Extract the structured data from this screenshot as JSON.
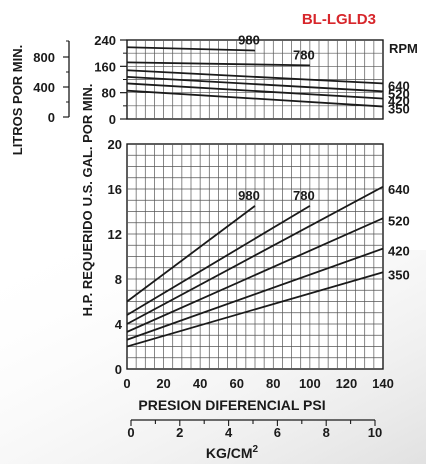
{
  "chart_data": [
    {
      "type": "line",
      "title": "BL-LGLD3",
      "ylabel": "LITROS POR MIN.",
      "ylabel2": "U.S. GAL. POR MIN.",
      "xlabel": "PRESION DIFERENCIAL PSI",
      "rpm_header": "RPM",
      "ylim": [
        0,
        240
      ],
      "grid": true,
      "y_ticks": [
        "240",
        "160",
        "80",
        "0"
      ],
      "y_minor_ticks": [
        "200",
        "120",
        "40"
      ],
      "litros_ticks": [
        "800",
        "400",
        "0"
      ],
      "series": [
        {
          "name": "980",
          "label_pos": "above",
          "x": [
            0,
            70
          ],
          "y": [
            218,
            208
          ]
        },
        {
          "name": "780",
          "label_pos": "above",
          "x": [
            0,
            100
          ],
          "y": [
            172,
            163
          ]
        },
        {
          "name": "640",
          "label_pos": "right",
          "x": [
            0,
            140
          ],
          "y": [
            148,
            108
          ]
        },
        {
          "name": "520",
          "label_pos": "right",
          "x": [
            0,
            140
          ],
          "y": [
            128,
            84
          ]
        },
        {
          "name": "420",
          "label_pos": "right",
          "x": [
            0,
            140
          ],
          "y": [
            108,
            62
          ]
        },
        {
          "name": "350",
          "label_pos": "right",
          "x": [
            0,
            140
          ],
          "y": [
            86,
            38
          ]
        }
      ]
    },
    {
      "type": "line",
      "ylabel": "H.P. REQUERIDO",
      "xlabel": "PRESION DIFERENCIAL PSI",
      "x2label": "KG/CM",
      "x2label_sup": "2",
      "xlim": [
        0,
        140
      ],
      "ylim": [
        0,
        20
      ],
      "grid": true,
      "x_ticks": [
        "0",
        "20",
        "40",
        "60",
        "80",
        "100",
        "120",
        "140"
      ],
      "y_ticks": [
        "20",
        "16",
        "12",
        "8",
        "4",
        "0"
      ],
      "kg_ticks": [
        "0",
        "2",
        "4",
        "6",
        "8",
        "10"
      ],
      "series": [
        {
          "name": "980",
          "label_pos": "above",
          "x": [
            0,
            70
          ],
          "y": [
            6.0,
            14.5
          ]
        },
        {
          "name": "780",
          "label_pos": "above",
          "x": [
            0,
            100
          ],
          "y": [
            4.8,
            14.5
          ]
        },
        {
          "name": "640",
          "label_pos": "right",
          "x": [
            0,
            140
          ],
          "y": [
            4.0,
            16.2
          ]
        },
        {
          "name": "520",
          "label_pos": "right",
          "x": [
            0,
            140
          ],
          "y": [
            3.3,
            13.4
          ]
        },
        {
          "name": "420",
          "label_pos": "right",
          "x": [
            0,
            140
          ],
          "y": [
            2.6,
            10.7
          ]
        },
        {
          "name": "350",
          "label_pos": "right",
          "x": [
            0,
            140
          ],
          "y": [
            2.0,
            8.6
          ]
        }
      ]
    }
  ],
  "colors": {
    "title": "#d7262b",
    "text": "#1a1a1a",
    "line": "#1a1a1a",
    "grid": "#555555",
    "background": "#ffffff"
  }
}
